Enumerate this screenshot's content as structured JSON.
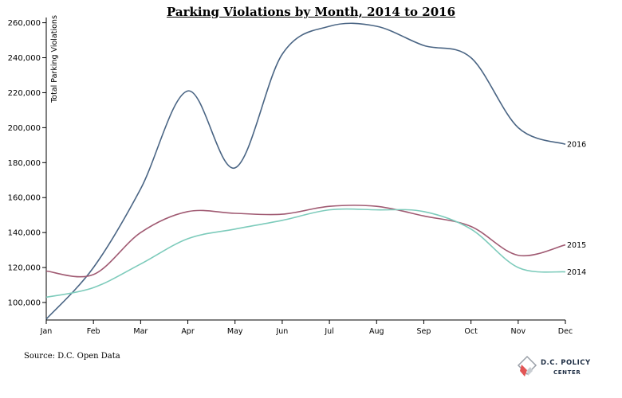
{
  "chart_data": {
    "type": "line",
    "title": "Parking Violations by Month, 2014 to 2016",
    "xlabel": "",
    "ylabel": "Total Parking Violations",
    "categories": [
      "Jan",
      "Feb",
      "Mar",
      "Apr",
      "May",
      "Jun",
      "Jul",
      "Aug",
      "Sep",
      "Oct",
      "Nov",
      "Dec"
    ],
    "yticks": [
      "100,000",
      "120,000",
      "140,000",
      "160,000",
      "180,000",
      "200,000",
      "220,000",
      "240,000",
      "260,000"
    ],
    "ylim": [
      90000,
      263000
    ],
    "grid": false,
    "series": [
      {
        "name": "2016",
        "color": "#4a6584",
        "values": [
          90500,
          120000,
          165000,
          221000,
          177000,
          242000,
          258000,
          258000,
          247000,
          240000,
          200000,
          190500
        ]
      },
      {
        "name": "2015",
        "color": "#a05a72",
        "values": [
          118000,
          116000,
          140000,
          152000,
          151000,
          150500,
          155000,
          155000,
          149500,
          143500,
          127000,
          133000
        ]
      },
      {
        "name": "2014",
        "color": "#7dcbbb",
        "values": [
          103000,
          108500,
          122000,
          136500,
          142000,
          147000,
          153000,
          153000,
          152000,
          142000,
          120000,
          117500
        ]
      }
    ]
  },
  "source_text": "Source: D.C. Open Data",
  "logo": {
    "line1": "D.C. POLICY",
    "line2": "CENTER"
  }
}
